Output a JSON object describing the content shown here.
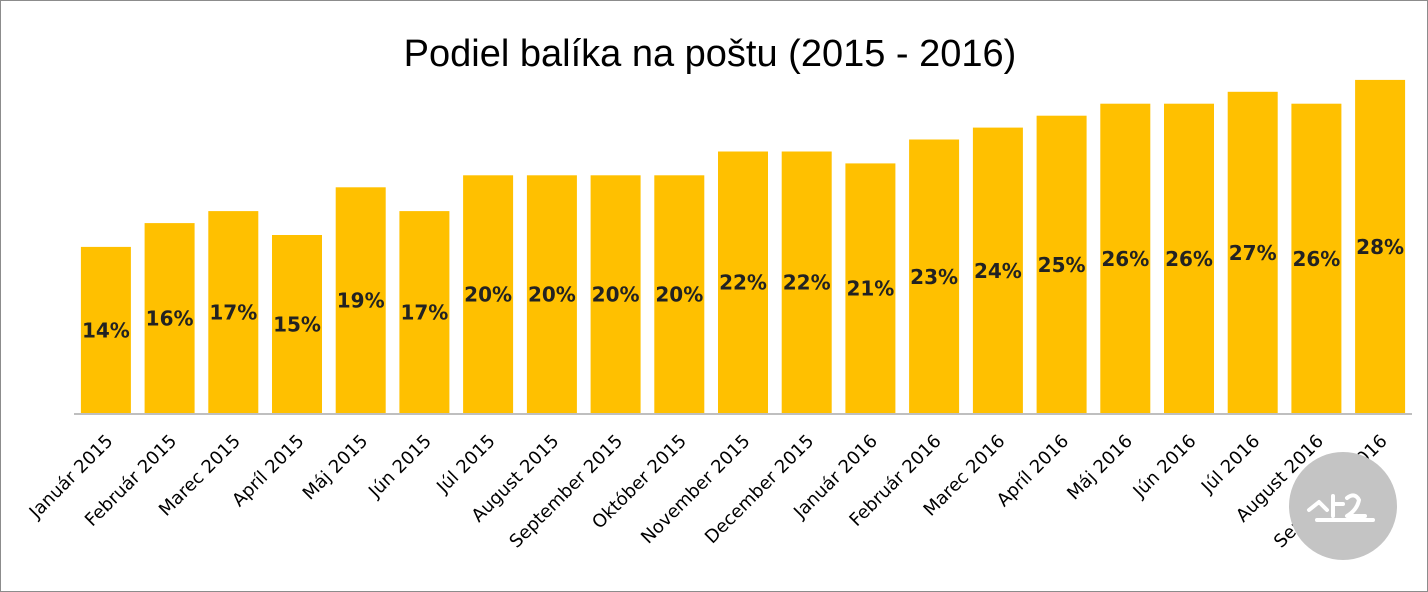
{
  "chart_data": {
    "type": "bar",
    "title": "Podiel balíka na poštu (2015 - 2016)",
    "xlabel": "",
    "ylabel": "",
    "ylim": [
      0,
      30
    ],
    "grid": false,
    "legend": "none",
    "bar_color": "#FFC000",
    "categories": [
      "Január 2015",
      "Február 2015",
      "Marec 2015",
      "Apríl 2015",
      "Máj 2015",
      "Jún 2015",
      "Júl 2015",
      "August 2015",
      "September 2015",
      "Október 2015",
      "November 2015",
      "December 2015",
      "Január 2016",
      "Február 2016",
      "Marec 2016",
      "Apríl 2016",
      "Máj 2016",
      "Jún 2016",
      "Júl 2016",
      "August 2016",
      "September 2016"
    ],
    "values": [
      14,
      16,
      17,
      15,
      19,
      17,
      20,
      20,
      20,
      20,
      22,
      22,
      21,
      23,
      24,
      25,
      26,
      26,
      27,
      26,
      28
    ],
    "data_labels": [
      "14%",
      "16%",
      "17%",
      "15%",
      "19%",
      "17%",
      "20%",
      "20%",
      "20%",
      "20%",
      "22%",
      "22%",
      "21%",
      "23%",
      "24%",
      "25%",
      "26%",
      "26%",
      "27%",
      "26%",
      "28%"
    ]
  },
  "watermark": {
    "text": "SME",
    "color": "#c4c4c4"
  }
}
